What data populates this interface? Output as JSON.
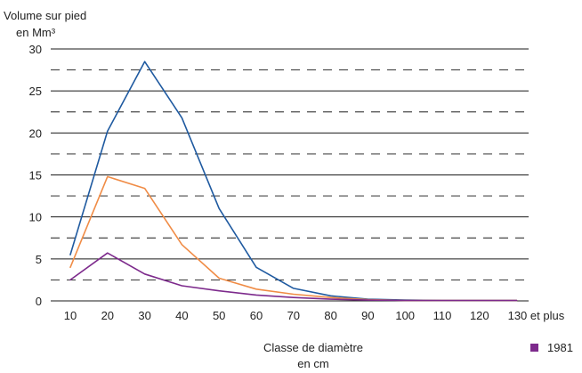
{
  "chart_data": {
    "type": "line",
    "ylabel_line1": "Volume sur pied",
    "ylabel_line2": "en Mm³",
    "xlabel_line1": "Classe de diamètre",
    "xlabel_line2": "en cm",
    "categories": [
      "10",
      "20",
      "30",
      "40",
      "50",
      "60",
      "70",
      "80",
      "90",
      "100",
      "110",
      "120",
      "130 et plus"
    ],
    "y_ticks": [
      "0",
      "5",
      "10",
      "15",
      "20",
      "25",
      "30"
    ],
    "ylim": [
      0,
      30
    ],
    "grid": "solid at multiples of 5, dashed at intermediate halves",
    "series": [
      {
        "color": "#1f5aa0",
        "values": [
          5.5,
          20.2,
          28.5,
          21.8,
          11.0,
          4.0,
          1.5,
          0.6,
          0.2,
          0.1,
          0.05,
          0.05,
          0.05
        ]
      },
      {
        "color": "#f08c46",
        "values": [
          4.0,
          14.8,
          13.4,
          6.7,
          2.7,
          1.4,
          0.8,
          0.4,
          0.15,
          0.05,
          0.05,
          0.05,
          0.05
        ]
      },
      {
        "name": "1981",
        "color": "#7d2a8c",
        "values": [
          2.5,
          5.7,
          3.2,
          1.8,
          1.2,
          0.7,
          0.4,
          0.2,
          0.1,
          0.05,
          0.05,
          0.05,
          0.05
        ]
      }
    ],
    "legend": {
      "position": "bottom-right",
      "label": "1981",
      "color": "#7d2a8c"
    }
  }
}
